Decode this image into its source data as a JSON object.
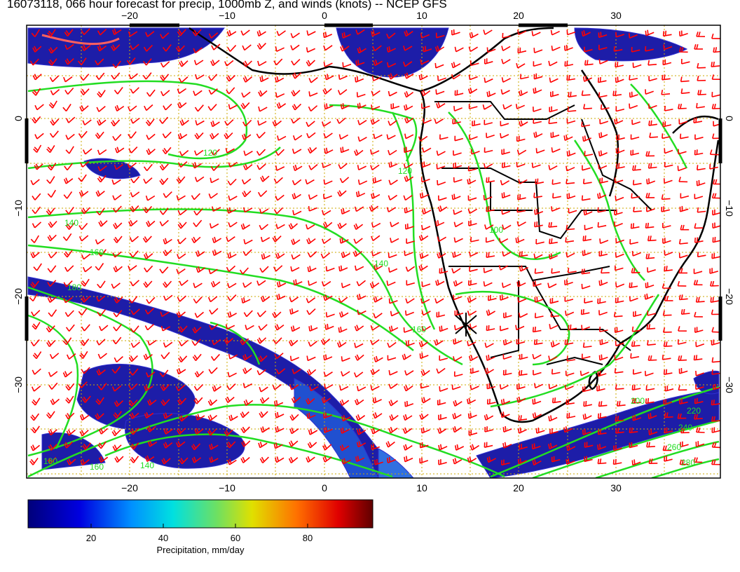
{
  "title": "16073118, 066 hour forecast for precip, 1000mb Z, and winds (knots) -- NCEP GFS",
  "map": {
    "lon_ticks": [
      "−20",
      "−10",
      "0",
      "10",
      "20",
      "30"
    ],
    "lat_ticks": [
      "0",
      "−10",
      "−20",
      "−30"
    ],
    "contour_labels": [
      "120",
      "140",
      "160",
      "180",
      "120",
      "140",
      "160",
      "180",
      "200",
      "220",
      "240",
      "260",
      "280",
      "160",
      "140",
      "100"
    ],
    "colors": {
      "wind_barbs": "#ff0000",
      "contours": "#22dd22",
      "coast": "#000000",
      "grid": "#ccaa00",
      "precip_low": "#1a1aa0"
    }
  },
  "colorbar": {
    "ticks": [
      "20",
      "40",
      "60",
      "80"
    ],
    "label": "Precipitation, mm/day"
  }
}
